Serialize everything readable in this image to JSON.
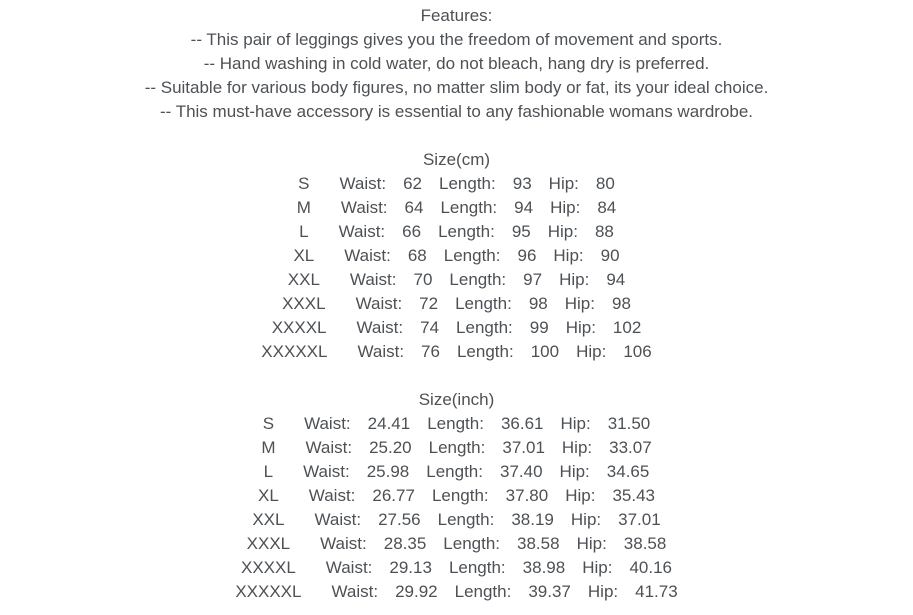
{
  "page": {
    "background": "#ffffff",
    "text_color": "#4d5156"
  },
  "features": {
    "title": "Features:",
    "items": [
      "-- This pair of leggings gives you the freedom of movement and sports.",
      "-- Hand washing in cold water, do not bleach, hang dry is preferred.",
      "-- Suitable for various body figures, no matter slim body or fat, its your ideal choice.",
      "-- This must-have accessory is essential to any fashionable womans wardrobe."
    ]
  },
  "labels": {
    "waist": "Waist:",
    "length": "Length:",
    "hip": "Hip:"
  },
  "size_cm": {
    "title": "Size(cm)",
    "rows": [
      {
        "size": "S",
        "waist": "62",
        "length": "93",
        "hip": "80"
      },
      {
        "size": "M",
        "waist": "64",
        "length": "94",
        "hip": "84"
      },
      {
        "size": "L",
        "waist": "66",
        "length": "95",
        "hip": "88"
      },
      {
        "size": "XL",
        "waist": "68",
        "length": "96",
        "hip": "90"
      },
      {
        "size": "XXL",
        "waist": "70",
        "length": "97",
        "hip": "94"
      },
      {
        "size": "XXXL",
        "waist": "72",
        "length": "98",
        "hip": "98"
      },
      {
        "size": "XXXXL",
        "waist": "74",
        "length": "99",
        "hip": "102"
      },
      {
        "size": "XXXXXL",
        "waist": "76",
        "length": "100",
        "hip": "106"
      }
    ]
  },
  "size_inch": {
    "title": "Size(inch)",
    "rows": [
      {
        "size": "S",
        "waist": "24.41",
        "length": "36.61",
        "hip": "31.50"
      },
      {
        "size": "M",
        "waist": "25.20",
        "length": "37.01",
        "hip": "33.07"
      },
      {
        "size": "L",
        "waist": "25.98",
        "length": "37.40",
        "hip": "34.65"
      },
      {
        "size": "XL",
        "waist": "26.77",
        "length": "37.80",
        "hip": "35.43"
      },
      {
        "size": "XXL",
        "waist": "27.56",
        "length": "38.19",
        "hip": "37.01"
      },
      {
        "size": "XXXL",
        "waist": "28.35",
        "length": "38.58",
        "hip": "38.58"
      },
      {
        "size": "XXXXL",
        "waist": "29.13",
        "length": "38.98",
        "hip": "40.16"
      },
      {
        "size": "XXXXXL",
        "waist": "29.92",
        "length": "39.37",
        "hip": "41.73"
      }
    ]
  }
}
